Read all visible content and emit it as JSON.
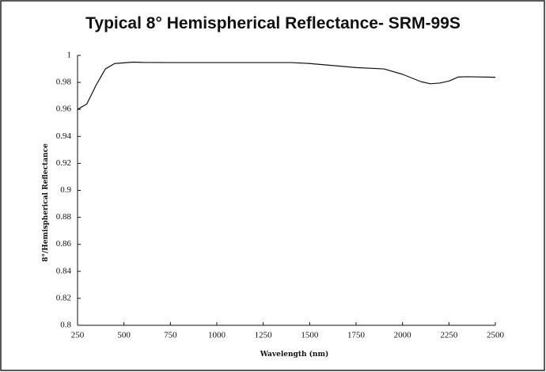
{
  "chart_data": {
    "type": "line",
    "title": "Typical 8° Hemispherical Reflectance- SRM-99S",
    "x_label": "Wavelength (nm)",
    "y_label": "8°/Hemispherical Reflectance",
    "x": [
      250,
      300,
      350,
      400,
      450,
      500,
      550,
      600,
      750,
      1000,
      1250,
      1400,
      1500,
      1750,
      1900,
      2000,
      2100,
      2150,
      2200,
      2250,
      2300,
      2350,
      2500
    ],
    "series": [
      {
        "color": "#111111",
        "values": [
          0.96,
          0.964,
          0.978,
          0.99,
          0.994,
          0.9945,
          0.995,
          0.9948,
          0.9947,
          0.9947,
          0.9947,
          0.9947,
          0.994,
          0.991,
          0.99,
          0.986,
          0.9805,
          0.979,
          0.9795,
          0.981,
          0.984,
          0.9842,
          0.9838
        ]
      }
    ],
    "xlim": [
      250,
      2500
    ],
    "xticks": [
      250,
      500,
      750,
      1000,
      1250,
      1500,
      1750,
      2000,
      2250,
      2500
    ],
    "ylim": [
      0.8,
      1
    ],
    "yticks": [
      0.8,
      0.82,
      0.84,
      0.86,
      0.88,
      0.9,
      0.92,
      0.94,
      0.96,
      0.98,
      1
    ],
    "grid": false
  }
}
